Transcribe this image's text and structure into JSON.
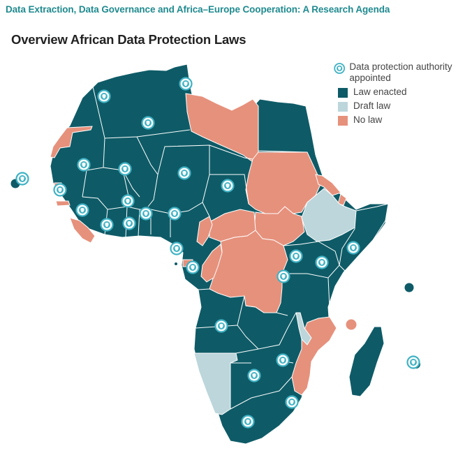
{
  "header": {
    "text": "Data Extraction, Data Governance and Africa–Europe Cooperation: A Research Agenda"
  },
  "map": {
    "title": "Overview African Data Protection Laws",
    "colors": {
      "law": "#0e5b67",
      "draft": "#bcd6db",
      "nolaw": "#e6917c",
      "border": "#ffffff",
      "authority": "#3fb2c4"
    },
    "legend": {
      "authority": "Data protection authority appointed",
      "law": "Law enacted",
      "draft": "Draft law",
      "nolaw": "No law"
    },
    "icons": [
      "authority-badge-icon"
    ]
  }
}
